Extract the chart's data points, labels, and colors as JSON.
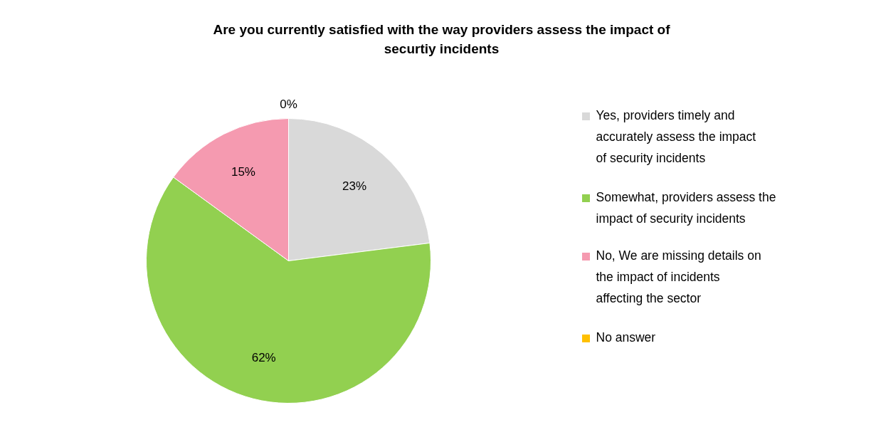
{
  "chart_data": {
    "type": "pie",
    "title": "Are you currently satisfied with the way providers assess the impact of securtiy incidents",
    "categories": [
      "Yes, providers timely and accurately assess the impact of security  incidents",
      "Somewhat, providers assess the impact of security incidents",
      "No, We are missing details on the impact of incidents affecting the sector",
      "No answer"
    ],
    "values": [
      23,
      62,
      15,
      0
    ],
    "colors": [
      "#d9d9d9",
      "#92d050",
      "#f59ab0",
      "#ffc000"
    ],
    "value_labels": [
      "23%",
      "62%",
      "15%",
      "0%"
    ],
    "legend": "right"
  }
}
